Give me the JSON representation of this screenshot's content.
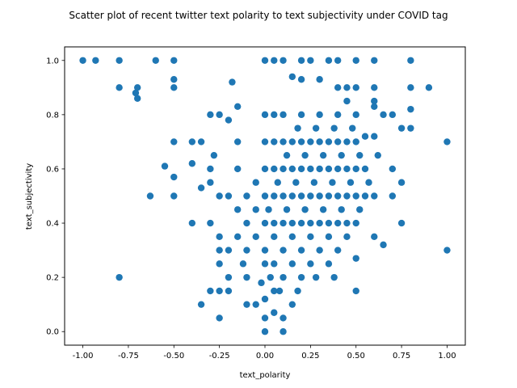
{
  "chart_data": {
    "type": "scatter",
    "title": "Scatter plot of recent twitter text polarity to text subjectivity under COVID tag",
    "xlabel": "text_polarity",
    "ylabel": "text_subjectivity",
    "xlim": [
      -1.1,
      1.1
    ],
    "ylim": [
      -0.05,
      1.05
    ],
    "xticks": [
      "-1.00",
      "-0.75",
      "-0.50",
      "-0.25",
      "0.00",
      "0.25",
      "0.50",
      "0.75",
      "1.00"
    ],
    "yticks": [
      "0.0",
      "0.2",
      "0.4",
      "0.6",
      "0.8",
      "1.0"
    ],
    "grid": false,
    "marker_color": "#1f77b4",
    "series": [
      {
        "points": [
          [
            -1.0,
            1.0
          ],
          [
            -0.93,
            1.0
          ],
          [
            -0.8,
            1.0
          ],
          [
            -0.6,
            1.0
          ],
          [
            -0.5,
            1.0
          ],
          [
            -0.5,
            0.93
          ],
          [
            -0.5,
            0.9
          ],
          [
            -0.8,
            0.9
          ],
          [
            -0.7,
            0.9
          ],
          [
            -0.7,
            0.86
          ],
          [
            -0.71,
            0.88
          ],
          [
            -0.8,
            0.2
          ],
          [
            -0.63,
            0.5
          ],
          [
            -0.5,
            0.5
          ],
          [
            -0.5,
            0.7
          ],
          [
            -0.55,
            0.61
          ],
          [
            -0.5,
            0.57
          ],
          [
            -0.4,
            0.4
          ],
          [
            -0.3,
            0.4
          ],
          [
            -0.35,
            0.1
          ],
          [
            -0.3,
            0.15
          ],
          [
            -0.25,
            0.05
          ],
          [
            -0.25,
            0.15
          ],
          [
            -0.2,
            0.15
          ],
          [
            -0.2,
            0.2
          ],
          [
            -0.4,
            0.7
          ],
          [
            -0.35,
            0.7
          ],
          [
            -0.3,
            0.8
          ],
          [
            -0.25,
            0.8
          ],
          [
            -0.2,
            0.78
          ],
          [
            -0.3,
            0.6
          ],
          [
            -0.3,
            0.55
          ],
          [
            -0.35,
            0.53
          ],
          [
            -0.4,
            0.62
          ],
          [
            -0.28,
            0.65
          ],
          [
            -0.25,
            0.5
          ],
          [
            -0.2,
            0.5
          ],
          [
            -0.25,
            0.35
          ],
          [
            -0.25,
            0.3
          ],
          [
            -0.25,
            0.25
          ],
          [
            -0.2,
            0.3
          ],
          [
            -0.18,
            0.92
          ],
          [
            -0.15,
            0.83
          ],
          [
            -0.15,
            0.7
          ],
          [
            -0.15,
            0.6
          ],
          [
            -0.15,
            0.45
          ],
          [
            -0.12,
            0.25
          ],
          [
            -0.1,
            0.1
          ],
          [
            -0.1,
            0.2
          ],
          [
            0.0,
            1.0
          ],
          [
            0.05,
            1.0
          ],
          [
            0.1,
            1.0
          ],
          [
            0.2,
            1.0
          ],
          [
            0.25,
            1.0
          ],
          [
            0.35,
            1.0
          ],
          [
            0.4,
            1.0
          ],
          [
            0.5,
            1.0
          ],
          [
            0.6,
            1.0
          ],
          [
            0.8,
            1.0
          ],
          [
            0.15,
            0.94
          ],
          [
            0.2,
            0.93
          ],
          [
            0.3,
            0.93
          ],
          [
            0.4,
            0.9
          ],
          [
            0.45,
            0.9
          ],
          [
            0.5,
            0.9
          ],
          [
            0.6,
            0.9
          ],
          [
            0.65,
            0.8
          ],
          [
            0.7,
            0.8
          ],
          [
            0.8,
            0.9
          ],
          [
            0.9,
            0.9
          ],
          [
            0.6,
            0.85
          ],
          [
            0.6,
            0.83
          ],
          [
            0.8,
            0.82
          ],
          [
            0.8,
            0.75
          ],
          [
            0.75,
            0.75
          ],
          [
            0.7,
            0.6
          ],
          [
            0.75,
            0.55
          ],
          [
            0.7,
            0.5
          ],
          [
            0.75,
            0.4
          ],
          [
            0.6,
            0.35
          ],
          [
            0.65,
            0.32
          ],
          [
            0.5,
            0.27
          ],
          [
            0.5,
            0.15
          ],
          [
            1.0,
            0.7
          ],
          [
            1.0,
            0.3
          ],
          [
            0.0,
            0.0
          ],
          [
            0.1,
            0.0
          ],
          [
            0.1,
            0.05
          ],
          [
            0.05,
            0.07
          ],
          [
            0.0,
            0.12
          ],
          [
            0.0,
            0.05
          ],
          [
            0.15,
            0.1
          ],
          [
            0.2,
            0.2
          ],
          [
            0.1,
            0.2
          ],
          [
            0.05,
            0.15
          ],
          [
            -0.05,
            0.1
          ],
          [
            0.0,
            0.3
          ],
          [
            0.1,
            0.3
          ],
          [
            0.2,
            0.3
          ],
          [
            0.3,
            0.3
          ],
          [
            0.4,
            0.3
          ],
          [
            0.0,
            0.4
          ],
          [
            0.05,
            0.4
          ],
          [
            0.1,
            0.4
          ],
          [
            0.15,
            0.4
          ],
          [
            0.2,
            0.4
          ],
          [
            0.25,
            0.4
          ],
          [
            0.3,
            0.4
          ],
          [
            0.35,
            0.4
          ],
          [
            0.4,
            0.4
          ],
          [
            0.45,
            0.4
          ],
          [
            0.5,
            0.4
          ],
          [
            0.0,
            0.5
          ],
          [
            0.05,
            0.5
          ],
          [
            0.1,
            0.5
          ],
          [
            0.15,
            0.5
          ],
          [
            0.2,
            0.5
          ],
          [
            0.25,
            0.5
          ],
          [
            0.3,
            0.5
          ],
          [
            0.35,
            0.5
          ],
          [
            0.4,
            0.5
          ],
          [
            0.45,
            0.5
          ],
          [
            0.5,
            0.5
          ],
          [
            0.55,
            0.5
          ],
          [
            0.6,
            0.5
          ],
          [
            0.0,
            0.6
          ],
          [
            0.05,
            0.6
          ],
          [
            0.1,
            0.6
          ],
          [
            0.15,
            0.6
          ],
          [
            0.2,
            0.6
          ],
          [
            0.25,
            0.6
          ],
          [
            0.3,
            0.6
          ],
          [
            0.35,
            0.6
          ],
          [
            0.4,
            0.6
          ],
          [
            0.45,
            0.6
          ],
          [
            0.5,
            0.6
          ],
          [
            0.55,
            0.6
          ],
          [
            0.0,
            0.7
          ],
          [
            0.05,
            0.7
          ],
          [
            0.1,
            0.7
          ],
          [
            0.15,
            0.7
          ],
          [
            0.2,
            0.7
          ],
          [
            0.25,
            0.7
          ],
          [
            0.3,
            0.7
          ],
          [
            0.35,
            0.7
          ],
          [
            0.4,
            0.7
          ],
          [
            0.45,
            0.7
          ],
          [
            0.5,
            0.7
          ],
          [
            0.55,
            0.72
          ],
          [
            0.6,
            0.72
          ],
          [
            0.0,
            0.8
          ],
          [
            0.05,
            0.8
          ],
          [
            0.1,
            0.8
          ],
          [
            0.2,
            0.8
          ],
          [
            0.3,
            0.8
          ],
          [
            0.4,
            0.8
          ],
          [
            0.45,
            0.85
          ],
          [
            0.5,
            0.8
          ],
          [
            -0.05,
            0.35
          ],
          [
            -0.05,
            0.45
          ],
          [
            -0.05,
            0.55
          ],
          [
            -0.1,
            0.4
          ],
          [
            -0.1,
            0.5
          ],
          [
            -0.1,
            0.3
          ],
          [
            -0.15,
            0.35
          ],
          [
            0.0,
            0.25
          ],
          [
            0.05,
            0.25
          ],
          [
            0.15,
            0.25
          ],
          [
            0.25,
            0.25
          ],
          [
            0.35,
            0.25
          ],
          [
            0.05,
            0.35
          ],
          [
            0.15,
            0.35
          ],
          [
            0.25,
            0.35
          ],
          [
            0.35,
            0.35
          ],
          [
            0.45,
            0.35
          ],
          [
            0.02,
            0.45
          ],
          [
            0.12,
            0.45
          ],
          [
            0.22,
            0.45
          ],
          [
            0.32,
            0.45
          ],
          [
            0.42,
            0.45
          ],
          [
            0.52,
            0.45
          ],
          [
            0.07,
            0.55
          ],
          [
            0.17,
            0.55
          ],
          [
            0.27,
            0.55
          ],
          [
            0.37,
            0.55
          ],
          [
            0.47,
            0.55
          ],
          [
            0.57,
            0.55
          ],
          [
            0.12,
            0.65
          ],
          [
            0.22,
            0.65
          ],
          [
            0.32,
            0.65
          ],
          [
            0.42,
            0.65
          ],
          [
            0.52,
            0.65
          ],
          [
            0.62,
            0.65
          ],
          [
            0.18,
            0.75
          ],
          [
            0.28,
            0.75
          ],
          [
            0.38,
            0.75
          ],
          [
            0.48,
            0.75
          ],
          [
            0.08,
            0.15
          ],
          [
            0.18,
            0.15
          ],
          [
            0.28,
            0.2
          ],
          [
            0.38,
            0.2
          ],
          [
            0.03,
            0.2
          ],
          [
            -0.02,
            0.18
          ]
        ]
      }
    ]
  }
}
